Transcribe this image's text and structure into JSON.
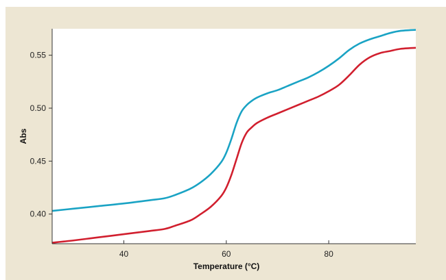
{
  "chart_data": {
    "type": "line",
    "xlabel": "Temperature (°C)",
    "ylabel": "Abs",
    "xlim": [
      26,
      97
    ],
    "ylim": [
      0.372,
      0.575
    ],
    "xticks": [
      40,
      60,
      80
    ],
    "yticks": [
      0.4,
      0.45,
      0.5,
      0.55
    ],
    "xtick_labels": [
      "40",
      "60",
      "80"
    ],
    "ytick_labels": [
      "0.40",
      "0.45",
      "0.50",
      "0.55"
    ],
    "grid": false,
    "series": [
      {
        "color": "#1aa3c4",
        "x": [
          26,
          30,
          35,
          40,
          45,
          48,
          50,
          53,
          55,
          57,
          59,
          60,
          61,
          62,
          63,
          64,
          65,
          66,
          68,
          70,
          72,
          74,
          76,
          78,
          80,
          82,
          84,
          86,
          88,
          90,
          92,
          94,
          97
        ],
        "y": [
          0.403,
          0.405,
          0.4075,
          0.41,
          0.413,
          0.415,
          0.418,
          0.424,
          0.43,
          0.438,
          0.449,
          0.458,
          0.471,
          0.486,
          0.497,
          0.503,
          0.507,
          0.51,
          0.514,
          0.517,
          0.521,
          0.525,
          0.529,
          0.534,
          0.54,
          0.547,
          0.555,
          0.561,
          0.565,
          0.568,
          0.571,
          0.573,
          0.574
        ]
      },
      {
        "color": "#d11f2e",
        "x": [
          26,
          30,
          35,
          40,
          45,
          48,
          50,
          53,
          55,
          57,
          59,
          60,
          61,
          62,
          63,
          64,
          65,
          66,
          68,
          70,
          72,
          74,
          76,
          78,
          80,
          82,
          84,
          86,
          88,
          90,
          92,
          94,
          97
        ],
        "y": [
          0.373,
          0.375,
          0.378,
          0.381,
          0.384,
          0.386,
          0.389,
          0.394,
          0.4,
          0.407,
          0.417,
          0.425,
          0.437,
          0.452,
          0.467,
          0.477,
          0.482,
          0.486,
          0.491,
          0.495,
          0.499,
          0.503,
          0.507,
          0.511,
          0.516,
          0.522,
          0.531,
          0.541,
          0.548,
          0.552,
          0.554,
          0.556,
          0.557
        ]
      }
    ]
  }
}
